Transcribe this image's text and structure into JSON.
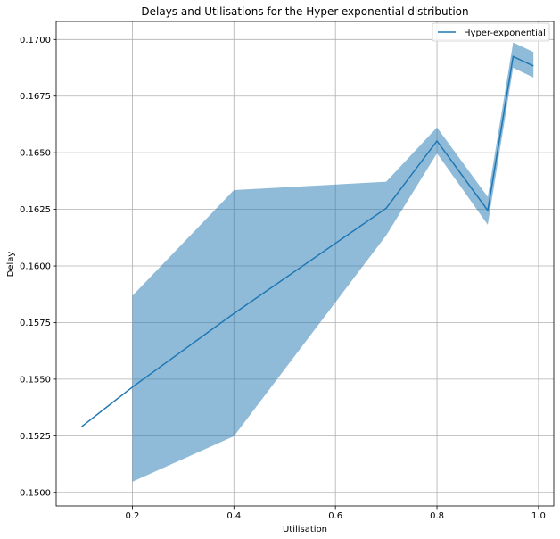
{
  "chart_data": {
    "type": "line",
    "title": "Delays and Utilisations for the Hyper-exponential distribution",
    "xlabel": "Utilisation",
    "ylabel": "Delay",
    "xlim": [
      0.05,
      1.03
    ],
    "ylim": [
      0.1494,
      0.1708
    ],
    "xticks": [
      0.2,
      0.4,
      0.6,
      0.8,
      1.0
    ],
    "xtick_labels": [
      "0.2",
      "0.4",
      "0.6",
      "0.8",
      "1.0"
    ],
    "yticks": [
      0.15,
      0.1525,
      0.155,
      0.1575,
      0.16,
      0.1625,
      0.165,
      0.1675,
      0.17
    ],
    "ytick_labels": [
      "0.1500",
      "0.1525",
      "0.1550",
      "0.1575",
      "0.1600",
      "0.1625",
      "0.1650",
      "0.1675",
      "0.1700"
    ],
    "grid": true,
    "legend": "top-right",
    "series": [
      {
        "name": "Hyper-exponential",
        "color": "#1f77b4",
        "x": [
          0.1,
          0.2,
          0.4,
          0.7,
          0.8,
          0.9,
          0.95,
          0.99
        ],
        "y": [
          0.1529,
          0.15465,
          0.1579,
          0.16255,
          0.16552,
          0.16245,
          0.16925,
          0.16883
        ]
      }
    ],
    "band": {
      "color": "#1f77b4",
      "opacity": 0.5,
      "x": [
        0.2,
        0.4,
        0.7,
        0.8,
        0.9,
        0.95,
        0.99
      ],
      "lower": [
        0.15047,
        0.15248,
        0.16135,
        0.16497,
        0.16182,
        0.16875,
        0.16832
      ],
      "upper": [
        0.15868,
        0.16335,
        0.16372,
        0.16612,
        0.16305,
        0.16987,
        0.16945
      ]
    }
  }
}
